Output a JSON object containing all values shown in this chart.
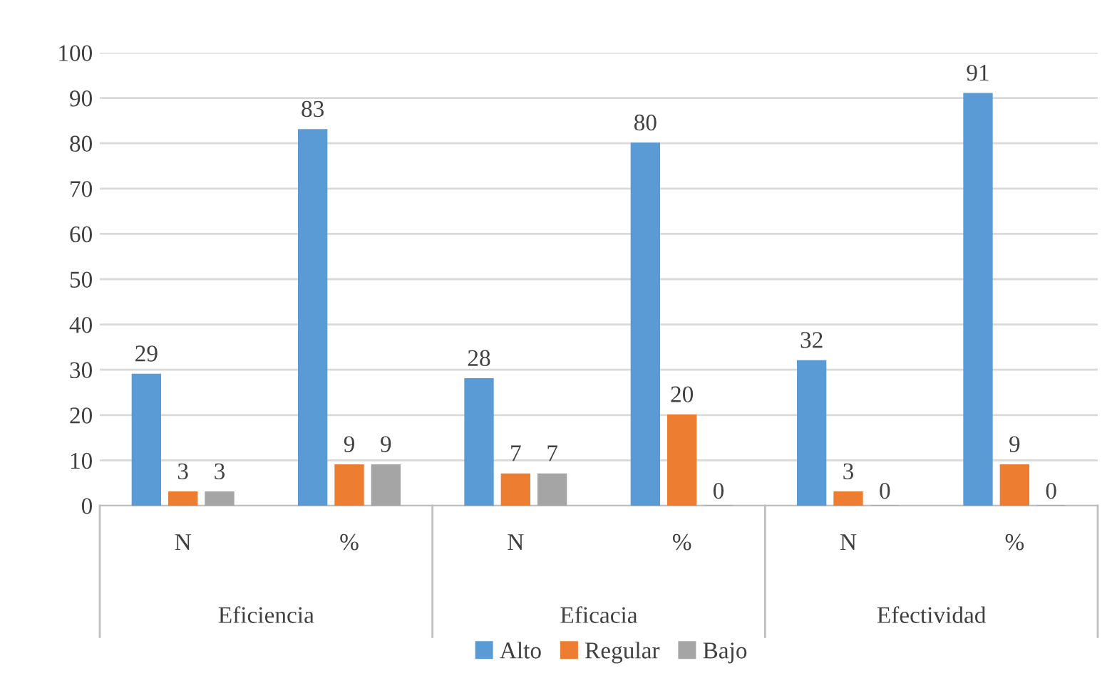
{
  "chart_data": {
    "type": "bar",
    "categories": [
      "N",
      "%",
      "N",
      "%",
      "N",
      "%"
    ],
    "series": [
      {
        "name": "Alto",
        "color": "#5b9bd5",
        "values": [
          29,
          83,
          28,
          80,
          32,
          91
        ]
      },
      {
        "name": "Regular",
        "color": "#ed7d31",
        "values": [
          3,
          9,
          7,
          20,
          3,
          9
        ]
      },
      {
        "name": "Bajo",
        "color": "#a5a5a5",
        "values": [
          3,
          9,
          7,
          0,
          0,
          0
        ]
      }
    ],
    "ylim": [
      0,
      100
    ],
    "yticks": [
      0,
      10,
      20,
      30,
      40,
      50,
      60,
      70,
      80,
      90,
      100
    ],
    "annotations": [
      "Eficiencia",
      "Eficacia",
      "Efectividad"
    ],
    "grid": "y",
    "legend": "bottom",
    "data_labels": true
  }
}
